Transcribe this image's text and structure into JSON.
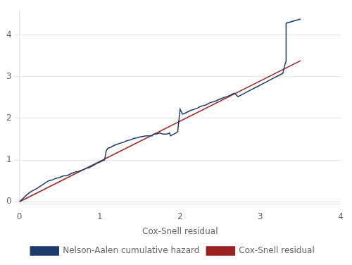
{
  "chart_data": {
    "type": "line",
    "xlabel": "Cox-Snell residual",
    "xlim": [
      0,
      4
    ],
    "ylim": [
      -0.05,
      4.6
    ],
    "xticks": [
      0,
      1,
      2,
      3,
      4
    ],
    "yticks": [
      0,
      1,
      2,
      3,
      4
    ],
    "grid": "y",
    "legend": "bottom",
    "series": [
      {
        "name": "Nelson-Aalen cumulative hazard",
        "color": "#1c3a6b",
        "x": [
          0.0,
          0.1,
          0.14,
          0.18,
          0.22,
          0.25,
          0.28,
          0.32,
          0.36,
          0.4,
          0.42,
          0.44,
          0.47,
          0.5,
          0.52,
          0.55,
          0.58,
          0.62,
          0.65,
          0.68,
          0.7,
          0.73,
          0.76,
          0.8,
          0.83,
          0.87,
          0.9,
          0.93,
          0.96,
          1.0,
          1.03,
          1.06,
          1.08,
          1.1,
          1.13,
          1.16,
          1.19,
          1.22,
          1.25,
          1.28,
          1.3,
          1.32,
          1.35,
          1.38,
          1.4,
          1.43,
          1.46,
          1.49,
          1.52,
          1.55,
          1.58,
          1.6,
          1.63,
          1.65,
          1.67,
          1.7,
          1.72,
          1.75,
          1.78,
          1.8,
          1.83,
          1.85,
          1.87,
          1.88,
          1.9,
          1.92,
          1.95,
          1.97,
          2.0,
          2.0,
          2.03,
          2.06,
          2.09,
          2.12,
          2.15,
          2.18,
          2.22,
          2.25,
          2.28,
          2.32,
          2.35,
          2.38,
          2.42,
          2.45,
          2.48,
          2.52,
          2.55,
          2.58,
          2.62,
          2.65,
          2.68,
          2.72,
          2.75,
          2.78,
          2.82,
          2.85,
          2.88,
          2.92,
          2.95,
          2.98,
          3.02,
          3.05,
          3.08,
          3.12,
          3.15,
          3.18,
          3.22,
          3.25,
          3.28,
          3.3,
          3.32,
          3.32,
          3.5
        ],
        "values": [
          0.0,
          0.18,
          0.24,
          0.28,
          0.32,
          0.36,
          0.4,
          0.45,
          0.5,
          0.52,
          0.53,
          0.55,
          0.57,
          0.58,
          0.6,
          0.62,
          0.62,
          0.65,
          0.68,
          0.7,
          0.72,
          0.72,
          0.75,
          0.77,
          0.8,
          0.82,
          0.85,
          0.88,
          0.92,
          0.95,
          0.98,
          1.0,
          1.22,
          1.28,
          1.3,
          1.33,
          1.36,
          1.38,
          1.4,
          1.42,
          1.43,
          1.45,
          1.47,
          1.48,
          1.5,
          1.52,
          1.53,
          1.55,
          1.56,
          1.57,
          1.58,
          1.58,
          1.58,
          1.58,
          1.62,
          1.62,
          1.63,
          1.65,
          1.62,
          1.62,
          1.62,
          1.63,
          1.65,
          1.58,
          1.6,
          1.62,
          1.65,
          1.68,
          2.22,
          2.22,
          2.1,
          2.12,
          2.15,
          2.18,
          2.2,
          2.22,
          2.25,
          2.28,
          2.3,
          2.32,
          2.35,
          2.38,
          2.4,
          2.42,
          2.45,
          2.48,
          2.5,
          2.52,
          2.55,
          2.58,
          2.6,
          2.52,
          2.55,
          2.58,
          2.62,
          2.65,
          2.68,
          2.72,
          2.75,
          2.78,
          2.82,
          2.85,
          2.88,
          2.92,
          2.95,
          2.98,
          3.02,
          3.05,
          3.08,
          3.25,
          3.38,
          4.28,
          4.38
        ]
      },
      {
        "name": "Cox-Snell residual",
        "color": "#9b2020",
        "x": [
          0.0,
          3.5
        ],
        "values": [
          0.0,
          3.38
        ]
      }
    ]
  }
}
